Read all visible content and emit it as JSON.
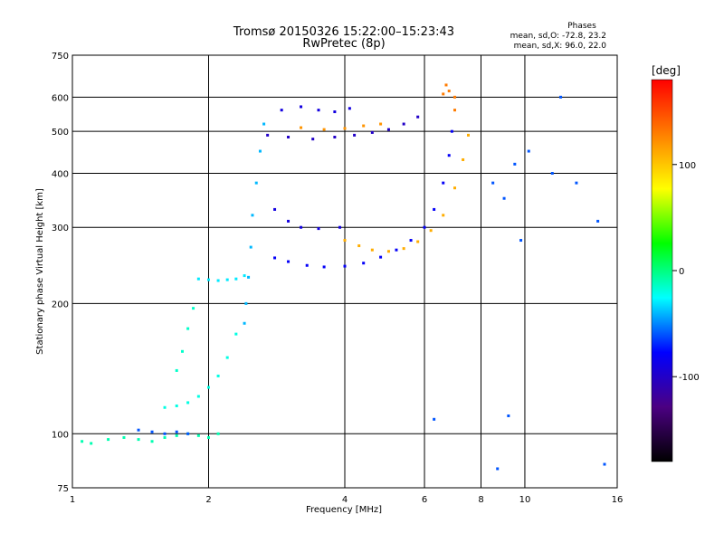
{
  "chart_data": {
    "type": "scatter",
    "title": "Tromsø 20150326 15:22:00–15:23:43",
    "subtitle": "RwPretec (8p)",
    "xlabel": "Frequency [MHz]",
    "ylabel": "Stationary phase Virtual Height [km]",
    "x_scale": "log",
    "y_scale": "log",
    "xlim": [
      1,
      16
    ],
    "ylim": [
      75,
      750
    ],
    "x_ticks": [
      1,
      2,
      4,
      6,
      8,
      10,
      16
    ],
    "y_ticks": [
      75,
      100,
      200,
      300,
      400,
      500,
      600,
      750
    ],
    "grid": true,
    "legend_title": "Phases",
    "legend_o": "mean, sd,O: -72.8, 23.2",
    "legend_x": "mean, sd,X:  96.0, 22.0",
    "colorbar": {
      "label": "[deg]",
      "range": [
        -180,
        180
      ],
      "ticks": [
        100,
        0,
        -100
      ],
      "colors": [
        "#000000",
        "#4b0082",
        "#0000ff",
        "#00ffff",
        "#00ff00",
        "#ffff00",
        "#ff7f00",
        "#ff0000"
      ]
    },
    "series": [
      {
        "values": [
          [
            1.05,
            96
          ],
          [
            1.1,
            95
          ],
          [
            1.2,
            97
          ],
          [
            1.3,
            98
          ],
          [
            1.4,
            97
          ],
          [
            1.5,
            96
          ],
          [
            1.6,
            98
          ],
          [
            1.7,
            99
          ],
          [
            1.8,
            100
          ],
          [
            1.9,
            99
          ],
          [
            2.0,
            98
          ],
          [
            2.1,
            100
          ]
        ],
        "phase": -10
      },
      {
        "values": [
          [
            1.4,
            102
          ],
          [
            1.5,
            101
          ],
          [
            1.6,
            100
          ],
          [
            1.7,
            101
          ],
          [
            1.8,
            100
          ]
        ],
        "phase": -60
      },
      {
        "values": [
          [
            1.6,
            115
          ],
          [
            1.7,
            116
          ],
          [
            1.8,
            118
          ],
          [
            1.9,
            122
          ],
          [
            2.0,
            128
          ],
          [
            2.1,
            136
          ],
          [
            2.2,
            150
          ],
          [
            2.3,
            170
          ]
        ],
        "phase": -20
      },
      {
        "values": [
          [
            1.7,
            140
          ],
          [
            1.75,
            155
          ],
          [
            1.8,
            175
          ],
          [
            1.85,
            195
          ]
        ],
        "phase": -15
      },
      {
        "values": [
          [
            1.9,
            228
          ],
          [
            2.0,
            227
          ],
          [
            2.1,
            226
          ],
          [
            2.2,
            227
          ],
          [
            2.3,
            228
          ],
          [
            2.4,
            232
          ]
        ],
        "phase": -30
      },
      {
        "values": [
          [
            2.4,
            180
          ],
          [
            2.42,
            200
          ],
          [
            2.45,
            230
          ],
          [
            2.48,
            270
          ],
          [
            2.5,
            320
          ],
          [
            2.55,
            380
          ],
          [
            2.6,
            450
          ],
          [
            2.65,
            520
          ]
        ],
        "phase": -40
      },
      {
        "values": [
          [
            2.8,
            255
          ],
          [
            3.0,
            250
          ],
          [
            3.3,
            245
          ],
          [
            3.6,
            243
          ],
          [
            4.0,
            244
          ],
          [
            4.4,
            248
          ],
          [
            4.8,
            256
          ],
          [
            5.2,
            266
          ],
          [
            5.6,
            280
          ],
          [
            6.0,
            300
          ],
          [
            6.3,
            330
          ],
          [
            6.6,
            380
          ],
          [
            6.8,
            440
          ],
          [
            6.9,
            500
          ]
        ],
        "phase": -80
      },
      {
        "values": [
          [
            4.0,
            280
          ],
          [
            4.3,
            272
          ],
          [
            4.6,
            266
          ],
          [
            5.0,
            264
          ],
          [
            5.4,
            268
          ],
          [
            5.8,
            278
          ],
          [
            6.2,
            295
          ],
          [
            6.6,
            320
          ],
          [
            7.0,
            370
          ],
          [
            7.3,
            430
          ],
          [
            7.5,
            490
          ]
        ],
        "phase": 110
      },
      {
        "values": [
          [
            2.8,
            330
          ],
          [
            3.0,
            310
          ],
          [
            3.2,
            300
          ],
          [
            3.5,
            298
          ],
          [
            3.9,
            300
          ]
        ],
        "phase": -90
      },
      {
        "values": [
          [
            2.7,
            490
          ],
          [
            3.0,
            485
          ],
          [
            3.4,
            480
          ],
          [
            3.8,
            485
          ],
          [
            4.2,
            490
          ],
          [
            4.6,
            497
          ],
          [
            5.0,
            505
          ],
          [
            5.4,
            520
          ],
          [
            5.8,
            540
          ]
        ],
        "phase": -100
      },
      {
        "values": [
          [
            2.9,
            560
          ],
          [
            3.2,
            570
          ],
          [
            3.5,
            560
          ],
          [
            3.8,
            555
          ],
          [
            4.1,
            565
          ]
        ],
        "phase": -90
      },
      {
        "values": [
          [
            3.2,
            510
          ],
          [
            3.6,
            505
          ],
          [
            4.0,
            508
          ],
          [
            4.4,
            515
          ],
          [
            4.8,
            520
          ]
        ],
        "phase": 120
      },
      {
        "values": [
          [
            6.6,
            610
          ],
          [
            6.7,
            640
          ],
          [
            6.8,
            620
          ],
          [
            7.0,
            600
          ],
          [
            7.0,
            560
          ]
        ],
        "phase": 130
      },
      {
        "values": [
          [
            8.5,
            380
          ],
          [
            9.0,
            350
          ],
          [
            9.5,
            420
          ],
          [
            10.2,
            450
          ],
          [
            11.5,
            400
          ],
          [
            13.0,
            380
          ],
          [
            14.5,
            310
          ],
          [
            9.8,
            280
          ],
          [
            12,
            600
          ],
          [
            15,
            85
          ],
          [
            8.7,
            83
          ],
          [
            9.2,
            110
          ],
          [
            6.3,
            108
          ]
        ],
        "phase": -60
      }
    ]
  }
}
